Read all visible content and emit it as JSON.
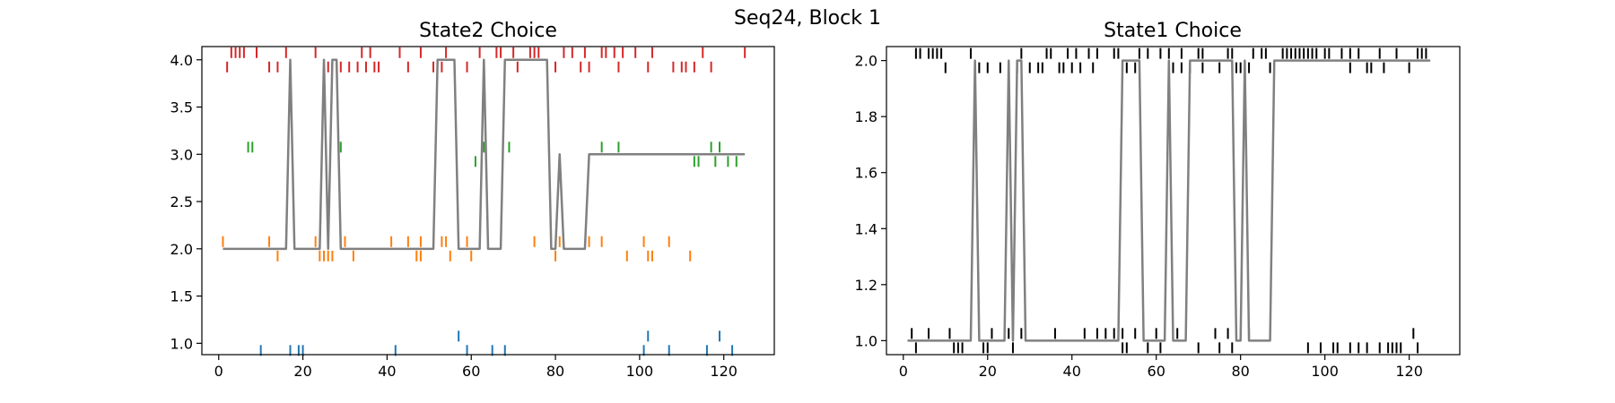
{
  "figure": {
    "suptitle": "Seq24, Block 1"
  },
  "chart_data": [
    {
      "type": "line",
      "title": "State2 Choice",
      "xlabel": "",
      "ylabel": "",
      "xlim": [
        -4,
        132
      ],
      "ylim": [
        0.88,
        4.14
      ],
      "xticks": [
        0,
        20,
        40,
        60,
        80,
        100,
        120
      ],
      "yticks": [
        1.0,
        1.5,
        2.0,
        2.5,
        3.0,
        3.5,
        4.0
      ],
      "ytick_labels": [
        "1.0",
        "1.5",
        "2.0",
        "2.5",
        "3.0",
        "3.5",
        "4.0"
      ],
      "grid": false,
      "line": {
        "name": "",
        "color": "#808080",
        "points": [
          [
            1,
            2
          ],
          [
            16,
            2
          ],
          [
            17,
            4
          ],
          [
            18,
            2
          ],
          [
            24,
            2
          ],
          [
            25,
            4
          ],
          [
            26,
            2
          ],
          [
            27,
            4
          ],
          [
            28,
            4
          ],
          [
            29,
            2
          ],
          [
            51,
            2
          ],
          [
            52,
            4
          ],
          [
            56,
            4
          ],
          [
            57,
            2
          ],
          [
            62,
            2
          ],
          [
            63,
            4
          ],
          [
            64,
            2
          ],
          [
            67,
            2
          ],
          [
            68,
            4
          ],
          [
            78,
            4
          ],
          [
            79,
            2
          ],
          [
            80,
            2
          ],
          [
            81,
            3
          ],
          [
            82,
            2
          ],
          [
            87,
            2
          ],
          [
            88,
            3
          ],
          [
            125,
            3
          ]
        ]
      },
      "markers": [
        {
          "name": "",
          "level": 1,
          "color": "#1f77b4",
          "above": [
            57,
            102,
            119
          ],
          "below": [
            10,
            17,
            19,
            20,
            42,
            59,
            65,
            68,
            101,
            107,
            116,
            122
          ]
        },
        {
          "name": "",
          "level": 2,
          "color": "#ff7f0e",
          "above": [
            1,
            12,
            23,
            30,
            41,
            45,
            48,
            53,
            54,
            59,
            75,
            81,
            88,
            91,
            101,
            107
          ],
          "below": [
            14,
            24,
            25,
            26,
            27,
            32,
            47,
            48,
            55,
            60,
            80,
            97,
            102,
            103,
            112
          ]
        },
        {
          "name": "",
          "level": 3,
          "color": "#2ca02c",
          "above": [
            7,
            8,
            29,
            63,
            69,
            91,
            95,
            117,
            119
          ],
          "below": [
            61,
            113,
            114,
            118,
            121,
            123
          ]
        },
        {
          "name": "",
          "level": 4,
          "color": "#d62728",
          "above": [
            3,
            4,
            5,
            6,
            9,
            16,
            23,
            34,
            36,
            43,
            48,
            54,
            62,
            66,
            67,
            70,
            74,
            75,
            76,
            82,
            84,
            87,
            91,
            92,
            94,
            96,
            99,
            103,
            115,
            125
          ],
          "below": [
            2,
            12,
            14,
            17,
            26,
            29,
            31,
            33,
            35,
            37,
            38,
            45,
            51,
            53,
            59,
            63,
            71,
            80,
            86,
            88,
            95,
            102,
            108,
            110,
            111,
            113,
            117
          ]
        }
      ]
    },
    {
      "type": "line",
      "title": "State1 Choice",
      "xlabel": "",
      "ylabel": "",
      "xlim": [
        -4,
        132
      ],
      "ylim": [
        0.95,
        2.05
      ],
      "xticks": [
        0,
        20,
        40,
        60,
        80,
        100,
        120
      ],
      "yticks": [
        1.0,
        1.2,
        1.4,
        1.6,
        1.8,
        2.0
      ],
      "ytick_labels": [
        "1.0",
        "1.2",
        "1.4",
        "1.6",
        "1.8",
        "2.0"
      ],
      "grid": false,
      "line": {
        "name": "",
        "color": "#808080",
        "points": [
          [
            1,
            1
          ],
          [
            16,
            1
          ],
          [
            17,
            2
          ],
          [
            18,
            1
          ],
          [
            24,
            1
          ],
          [
            25,
            2
          ],
          [
            26,
            1
          ],
          [
            27,
            2
          ],
          [
            28,
            2
          ],
          [
            29,
            1
          ],
          [
            51,
            1
          ],
          [
            52,
            2
          ],
          [
            56,
            2
          ],
          [
            57,
            1
          ],
          [
            62,
            1
          ],
          [
            63,
            2
          ],
          [
            64,
            1
          ],
          [
            67,
            1
          ],
          [
            68,
            2
          ],
          [
            78,
            2
          ],
          [
            79,
            1
          ],
          [
            80,
            1
          ],
          [
            81,
            2
          ],
          [
            82,
            1
          ],
          [
            87,
            1
          ],
          [
            88,
            2
          ],
          [
            125,
            2
          ]
        ]
      },
      "markers": [
        {
          "name": "",
          "level": 1,
          "color": "#000000",
          "above": [
            2,
            6,
            11,
            16,
            21,
            25,
            28,
            36,
            43,
            46,
            48,
            50,
            52,
            55,
            60,
            65,
            74,
            77,
            82,
            121
          ],
          "below": [
            3,
            12,
            13,
            14,
            19,
            20,
            26,
            52,
            53,
            58,
            61,
            70,
            75,
            78,
            96,
            99,
            102,
            103,
            106,
            108,
            110,
            113,
            115,
            116,
            117,
            118,
            122
          ]
        },
        {
          "name": "",
          "level": 2,
          "color": "#000000",
          "above": [
            3,
            4,
            6,
            7,
            8,
            9,
            16,
            28,
            34,
            35,
            39,
            41,
            44,
            46,
            50,
            51,
            56,
            58,
            61,
            63,
            66,
            70,
            71,
            77,
            78,
            83,
            85,
            86,
            90,
            91,
            92,
            93,
            94,
            95,
            96,
            97,
            98,
            100,
            101,
            104,
            106,
            108,
            113,
            117,
            122,
            123,
            124
          ],
          "below": [
            10,
            18,
            20,
            23,
            27,
            30,
            32,
            33,
            37,
            38,
            40,
            42,
            45,
            53,
            55,
            63,
            64,
            66,
            68,
            71,
            75,
            79,
            80,
            82,
            87,
            106,
            110,
            111,
            114,
            120
          ]
        }
      ]
    }
  ]
}
